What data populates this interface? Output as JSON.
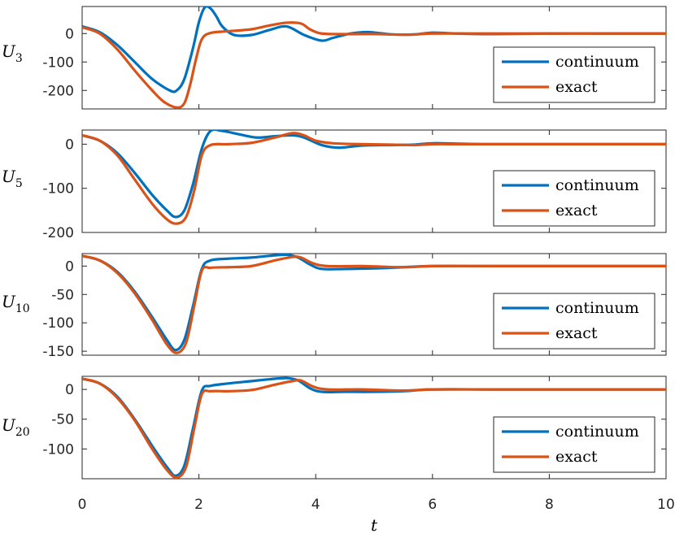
{
  "colors": {
    "continuum": "#0072BD",
    "exact": "#D95319",
    "axis": "#262626"
  },
  "xlabel": "t",
  "chart_data": [
    {
      "type": "line",
      "ylabel": "U",
      "ylabel_sub": "3",
      "xlim": [
        0,
        10
      ],
      "ylim": [
        -265,
        95
      ],
      "yticks": [
        0,
        -100,
        -200
      ],
      "ytick_labels": [
        "0",
        "-100",
        "-200"
      ],
      "legend": {
        "position": "bottom-right",
        "entries": [
          "continuum",
          "exact"
        ]
      },
      "series": [
        {
          "name": "continuum",
          "x": [
            0,
            0.3,
            0.6,
            0.9,
            1.2,
            1.5,
            1.62,
            1.75,
            1.9,
            2.0,
            2.1,
            2.2,
            2.3,
            2.4,
            2.6,
            2.9,
            3.2,
            3.5,
            3.8,
            4.1,
            4.3,
            4.6,
            4.9,
            5.3,
            5.7,
            6.0,
            6.4,
            7.0,
            8.0,
            9.0,
            10.0
          ],
          "y": [
            25,
            5,
            -40,
            -100,
            -160,
            -200,
            -200,
            -160,
            -50,
            40,
            92,
            88,
            60,
            25,
            -5,
            -5,
            12,
            25,
            -5,
            -25,
            -15,
            0,
            5,
            -3,
            -3,
            3,
            0,
            -2,
            0,
            0,
            0
          ]
        },
        {
          "name": "exact",
          "x": [
            0,
            0.3,
            0.6,
            0.9,
            1.2,
            1.4,
            1.62,
            1.75,
            1.85,
            1.95,
            2.05,
            2.2,
            2.5,
            2.9,
            3.2,
            3.5,
            3.75,
            3.9,
            4.1,
            4.5,
            5.0,
            5.6,
            6.0,
            7.0,
            8.0,
            9.0,
            10.0
          ],
          "y": [
            22,
            0,
            -55,
            -130,
            -200,
            -240,
            -260,
            -245,
            -180,
            -90,
            -20,
            2,
            8,
            15,
            28,
            38,
            35,
            15,
            0,
            -2,
            -2,
            -4,
            0,
            0,
            0,
            0,
            0
          ]
        }
      ]
    },
    {
      "type": "line",
      "ylabel": "U",
      "ylabel_sub": "5",
      "xlim": [
        0,
        10
      ],
      "ylim": [
        -200,
        32
      ],
      "yticks": [
        0,
        -100,
        -200
      ],
      "ytick_labels": [
        "0",
        "-100",
        "-200"
      ],
      "legend": {
        "position": "bottom-right",
        "entries": [
          "continuum",
          "exact"
        ]
      },
      "series": [
        {
          "name": "continuum",
          "x": [
            0,
            0.3,
            0.6,
            0.9,
            1.2,
            1.45,
            1.6,
            1.75,
            1.9,
            2.05,
            2.2,
            2.4,
            2.7,
            3.0,
            3.3,
            3.6,
            3.8,
            4.1,
            4.4,
            4.8,
            5.3,
            5.7,
            6.0,
            6.5,
            7.0,
            8.0,
            9.0,
            10.0
          ],
          "y": [
            20,
            8,
            -20,
            -65,
            -115,
            -150,
            -165,
            -150,
            -90,
            -10,
            30,
            30,
            22,
            15,
            18,
            20,
            15,
            -2,
            -8,
            -3,
            -2,
            -1,
            2,
            1,
            0,
            0,
            0,
            0
          ]
        },
        {
          "name": "exact",
          "x": [
            0,
            0.3,
            0.6,
            0.9,
            1.2,
            1.45,
            1.62,
            1.78,
            1.92,
            2.05,
            2.2,
            2.5,
            2.9,
            3.3,
            3.6,
            3.8,
            4.0,
            4.3,
            4.8,
            5.3,
            5.7,
            6.0,
            6.5,
            7.0,
            8.0,
            9.0,
            10.0
          ],
          "y": [
            20,
            8,
            -25,
            -80,
            -135,
            -170,
            -180,
            -165,
            -105,
            -25,
            -2,
            0,
            3,
            15,
            25,
            20,
            8,
            2,
            0,
            -1,
            -2,
            0,
            0,
            0,
            0,
            0,
            0
          ]
        }
      ]
    },
    {
      "type": "line",
      "ylabel": "U",
      "ylabel_sub": "10",
      "xlim": [
        0,
        10
      ],
      "ylim": [
        -157,
        22
      ],
      "yticks": [
        0,
        -50,
        -100,
        -150
      ],
      "ytick_labels": [
        "0",
        "-50",
        "-100",
        "-150"
      ],
      "legend": {
        "position": "bottom-right",
        "entries": [
          "continuum",
          "exact"
        ]
      },
      "series": [
        {
          "name": "continuum",
          "x": [
            0,
            0.3,
            0.6,
            0.9,
            1.2,
            1.45,
            1.6,
            1.75,
            1.9,
            2.05,
            2.2,
            2.5,
            2.9,
            3.2,
            3.5,
            3.7,
            3.9,
            4.1,
            4.5,
            5.0,
            5.5,
            6.0,
            7.0,
            8.0,
            9.0,
            10.0
          ],
          "y": [
            18,
            10,
            -10,
            -45,
            -90,
            -130,
            -148,
            -130,
            -70,
            -5,
            10,
            13,
            15,
            18,
            20,
            15,
            3,
            -5,
            -5,
            -4,
            -2,
            0,
            0,
            0,
            0,
            0
          ]
        },
        {
          "name": "exact",
          "x": [
            0,
            0.3,
            0.6,
            0.9,
            1.2,
            1.45,
            1.62,
            1.78,
            1.92,
            2.05,
            2.2,
            2.5,
            2.9,
            3.3,
            3.6,
            3.75,
            3.95,
            4.2,
            4.8,
            5.5,
            6.0,
            7.0,
            8.0,
            9.0,
            10.0
          ],
          "y": [
            18,
            10,
            -12,
            -48,
            -95,
            -138,
            -153,
            -135,
            -70,
            -8,
            -3,
            -2,
            0,
            10,
            16,
            15,
            5,
            0,
            0,
            -2,
            0,
            0,
            0,
            0,
            0
          ]
        }
      ]
    },
    {
      "type": "line",
      "ylabel": "U",
      "ylabel_sub": "20",
      "xlim": [
        0,
        10
      ],
      "ylim": [
        -150,
        22
      ],
      "yticks": [
        0,
        -50,
        -100
      ],
      "ytick_labels": [
        "0",
        "-50",
        "-100"
      ],
      "legend": {
        "position": "bottom-right",
        "entries": [
          "continuum",
          "exact"
        ]
      },
      "series": [
        {
          "name": "continuum",
          "x": [
            0,
            0.3,
            0.6,
            0.9,
            1.2,
            1.45,
            1.6,
            1.75,
            1.9,
            2.05,
            2.2,
            2.5,
            2.9,
            3.2,
            3.5,
            3.7,
            3.9,
            4.1,
            4.5,
            5.0,
            5.5,
            6.0,
            7.0,
            8.0,
            9.0,
            10.0
          ],
          "y": [
            18,
            10,
            -12,
            -50,
            -95,
            -130,
            -145,
            -128,
            -65,
            -2,
            6,
            10,
            14,
            17,
            19,
            15,
            2,
            -4,
            -4,
            -4,
            -3,
            0,
            0,
            0,
            0,
            0
          ]
        },
        {
          "name": "exact",
          "x": [
            0,
            0.3,
            0.6,
            0.9,
            1.2,
            1.45,
            1.62,
            1.78,
            1.92,
            2.05,
            2.2,
            2.5,
            2.9,
            3.3,
            3.6,
            3.75,
            3.95,
            4.2,
            4.8,
            5.5,
            6.0,
            7.0,
            8.0,
            9.0,
            10.0
          ],
          "y": [
            18,
            10,
            -14,
            -52,
            -100,
            -135,
            -148,
            -130,
            -65,
            -8,
            -3,
            -3,
            -1,
            8,
            14,
            15,
            5,
            0,
            0,
            -2,
            0,
            0,
            0,
            0,
            0
          ]
        }
      ]
    }
  ],
  "xaxis": {
    "ticks": [
      0,
      2,
      4,
      6,
      8,
      10
    ],
    "tick_labels": [
      "0",
      "2",
      "4",
      "6",
      "8",
      "10"
    ]
  }
}
